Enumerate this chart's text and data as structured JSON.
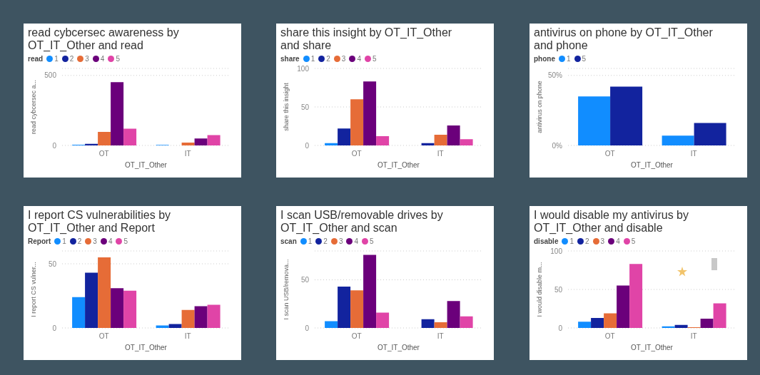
{
  "chart_data": [
    {
      "type": "bar",
      "title": "read cybcersec awareness by OT_IT_Other and read",
      "legend_title": "read",
      "xlabel": "OT_IT_Other",
      "ylabel": "read cybcersec a...",
      "categories": [
        "OT",
        "IT"
      ],
      "ylim": [
        0,
        550
      ],
      "yticks": [
        0,
        500
      ],
      "grid": "y",
      "legend": "top left",
      "series": [
        {
          "name": "1",
          "color": "#118dff",
          "values": [
            5,
            4
          ]
        },
        {
          "name": "2",
          "color": "#12239e",
          "values": [
            12,
            null
          ]
        },
        {
          "name": "3",
          "color": "#e66c37",
          "values": [
            97,
            21
          ]
        },
        {
          "name": "4",
          "color": "#6b007b",
          "values": [
            452,
            50
          ]
        },
        {
          "name": "5",
          "color": "#e044a7",
          "values": [
            120,
            74
          ]
        }
      ]
    },
    {
      "type": "bar",
      "title": "share this insight by OT_IT_Other and share",
      "legend_title": "share",
      "xlabel": "OT_IT_Other",
      "ylabel": "share this insight",
      "categories": [
        "OT",
        "IT"
      ],
      "ylim": [
        0,
        100
      ],
      "yticks": [
        0,
        50,
        100
      ],
      "grid": "y",
      "legend": "top left",
      "series": [
        {
          "name": "1",
          "color": "#118dff",
          "values": [
            3,
            null
          ]
        },
        {
          "name": "2",
          "color": "#12239e",
          "values": [
            22,
            3
          ]
        },
        {
          "name": "3",
          "color": "#e66c37",
          "values": [
            60,
            14
          ]
        },
        {
          "name": "4",
          "color": "#6b007b",
          "values": [
            83,
            26
          ]
        },
        {
          "name": "5",
          "color": "#e044a7",
          "values": [
            12,
            8
          ]
        }
      ]
    },
    {
      "type": "bar",
      "title": "antivirus on phone by OT_IT_Other and phone",
      "legend_title": "phone",
      "xlabel": "OT_IT_Other",
      "ylabel": "antivirus on phone",
      "categories": [
        "OT",
        "IT"
      ],
      "ylim": [
        0,
        55
      ],
      "yticks": [
        {
          "value": 0,
          "label": "0%"
        },
        {
          "value": 50,
          "label": "50%"
        }
      ],
      "grid": "y",
      "legend": "top left",
      "series": [
        {
          "name": "1",
          "color": "#118dff",
          "values": [
            35,
            7
          ]
        },
        {
          "name": "5",
          "color": "#12239e",
          "values": [
            42,
            16
          ]
        }
      ]
    },
    {
      "type": "bar",
      "title": "I report CS vulnerabilities by OT_IT_Other and Report",
      "legend_title": "Report",
      "xlabel": "OT_IT_Other",
      "ylabel": "I report CS vulner...",
      "categories": [
        "OT",
        "IT"
      ],
      "ylim": [
        0,
        60
      ],
      "yticks": [
        0,
        50
      ],
      "grid": "y",
      "legend": "top left",
      "series": [
        {
          "name": "1",
          "color": "#118dff",
          "values": [
            24,
            2
          ]
        },
        {
          "name": "2",
          "color": "#12239e",
          "values": [
            43,
            3
          ]
        },
        {
          "name": "3",
          "color": "#e66c37",
          "values": [
            55,
            14
          ]
        },
        {
          "name": "4",
          "color": "#6b007b",
          "values": [
            31,
            17
          ]
        },
        {
          "name": "5",
          "color": "#e044a7",
          "values": [
            29,
            18
          ]
        }
      ]
    },
    {
      "type": "bar",
      "title": "I scan USB/removable drives by OT_IT_Other and scan",
      "legend_title": "scan",
      "xlabel": "OT_IT_Other",
      "ylabel": "I scan USB/remova...",
      "categories": [
        "OT",
        "IT"
      ],
      "ylim": [
        0,
        80
      ],
      "yticks": [
        0,
        50
      ],
      "grid": "y",
      "legend": "top left",
      "series": [
        {
          "name": "1",
          "color": "#118dff",
          "values": [
            7,
            null
          ]
        },
        {
          "name": "2",
          "color": "#12239e",
          "values": [
            43,
            9
          ]
        },
        {
          "name": "3",
          "color": "#e66c37",
          "values": [
            39,
            6
          ]
        },
        {
          "name": "4",
          "color": "#6b007b",
          "values": [
            76,
            28
          ]
        },
        {
          "name": "5",
          "color": "#e044a7",
          "values": [
            16,
            12
          ]
        }
      ]
    },
    {
      "type": "bar",
      "title": "I would disable my antivirus by OT_IT_Other and disable",
      "legend_title": "disable",
      "xlabel": "OT_IT_Other",
      "ylabel": "I would disable m...",
      "categories": [
        "OT",
        "IT"
      ],
      "ylim": [
        0,
        100
      ],
      "yticks": [
        0,
        50,
        100
      ],
      "grid": "y",
      "legend": "top left",
      "series": [
        {
          "name": "1",
          "color": "#118dff",
          "values": [
            8,
            2
          ]
        },
        {
          "name": "2",
          "color": "#12239e",
          "values": [
            13,
            4
          ]
        },
        {
          "name": "3",
          "color": "#e66c37",
          "values": [
            19,
            1
          ]
        },
        {
          "name": "4",
          "color": "#6b007b",
          "values": [
            55,
            12
          ]
        },
        {
          "name": "5",
          "color": "#e044a7",
          "values": [
            83,
            32
          ]
        }
      ]
    }
  ]
}
